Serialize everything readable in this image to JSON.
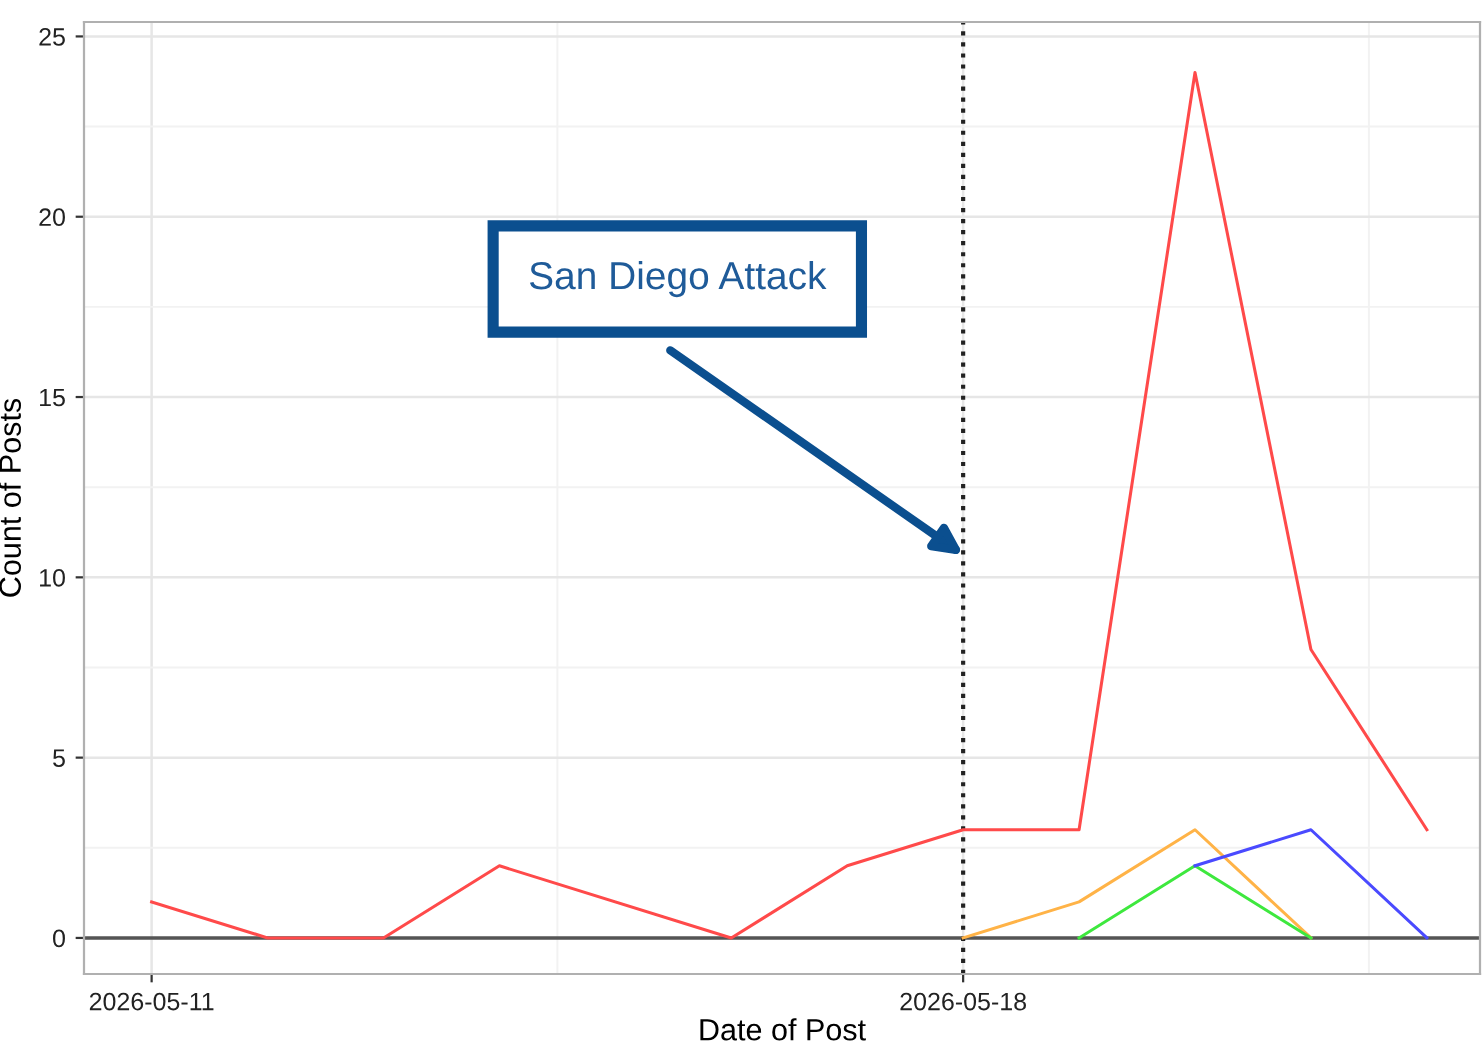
{
  "chart_data": {
    "type": "line",
    "xlabel": "Date of Post",
    "ylabel": "Count of Posts",
    "series": [
      {
        "color": "#ff4a4a",
        "x": [
          "2026-05-11",
          "2026-05-12",
          "2026-05-13",
          "2026-05-14",
          "2026-05-16",
          "2026-05-17",
          "2026-05-18",
          "2026-05-19",
          "2026-05-20",
          "2026-05-21",
          "2026-05-22"
        ],
        "values": [
          1,
          0,
          0,
          2,
          0,
          2,
          3,
          3,
          24,
          8,
          3
        ]
      },
      {
        "color": "#ffb347",
        "x": [
          "2026-05-18",
          "2026-05-19",
          "2026-05-20",
          "2026-05-21"
        ],
        "values": [
          0,
          1,
          3,
          0
        ]
      },
      {
        "color": "#3ee83e",
        "x": [
          "2026-05-19",
          "2026-05-20",
          "2026-05-21"
        ],
        "values": [
          0,
          2,
          0
        ]
      },
      {
        "color": "#4a4aff",
        "x": [
          "2026-05-20",
          "2026-05-21",
          "2026-05-22"
        ],
        "values": [
          2,
          3,
          0
        ]
      }
    ],
    "xlim": [
      "2026-05-10T10:00",
      "2026-05-22T11:00"
    ],
    "xticks": [
      "2026-05-11",
      "2026-05-18"
    ],
    "ylim": [
      -1,
      25.4
    ],
    "yticks": [
      0,
      5,
      10,
      15,
      20,
      25
    ],
    "grid": true,
    "marker": "none",
    "line_style": "solid",
    "ref_lines": [
      {
        "axis": "y",
        "value": 0,
        "color": "#555555",
        "line_style": "solid"
      },
      {
        "axis": "x",
        "value": "2026-05-18",
        "color": "#222222",
        "line_style": "dotted"
      }
    ],
    "annotations": [
      "San Diego Attack"
    ]
  }
}
